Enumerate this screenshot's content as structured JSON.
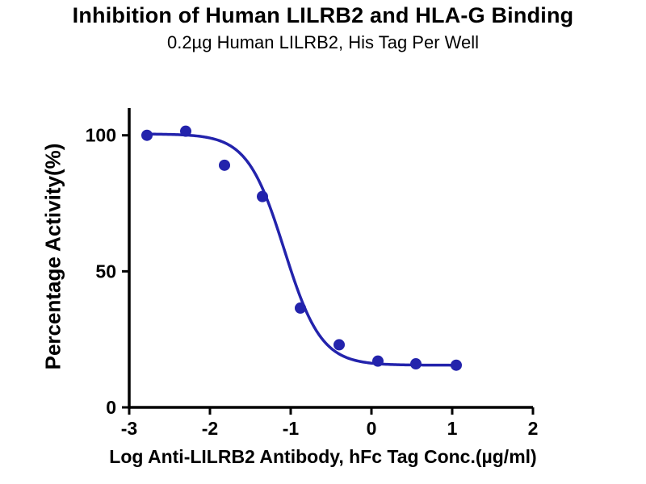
{
  "header": {
    "title": "Inhibition of Human LILRB2 and HLA-G Binding",
    "subtitle": "0.2µg Human LILRB2, His Tag Per Well"
  },
  "chart_data": {
    "type": "scatter",
    "title": "Inhibition of Human LILRB2 and HLA-G Binding",
    "subtitle": "0.2µg Human LILRB2, His Tag Per Well",
    "xlabel": "Log Anti-LILRB2 Antibody, hFc Tag Conc.(µg/ml)",
    "ylabel": "Percentage Activity(%)",
    "x": [
      -2.78,
      -2.3,
      -1.82,
      -1.35,
      -0.88,
      -0.4,
      0.08,
      0.55,
      1.05
    ],
    "y": [
      100,
      101.5,
      89,
      77.5,
      36.5,
      23,
      17,
      16,
      15.5
    ],
    "xlim": [
      -3,
      2
    ],
    "ylim": [
      0,
      110
    ],
    "x_ticks": [
      "-3",
      "-2",
      "-1",
      "0",
      "1",
      "2"
    ],
    "x_tick_values": [
      -3,
      -2,
      -1,
      0,
      1,
      2
    ],
    "y_ticks": [
      "0",
      "50",
      "100"
    ],
    "y_tick_values": [
      0,
      50,
      100
    ],
    "curve_fit": {
      "model": "4PL-sigmoid",
      "top": 100.5,
      "bottom": 15.5,
      "logIC50": -1.08,
      "hillslope": 1.9
    },
    "grid": false,
    "legend": false,
    "colors": {
      "series": "#2323ac",
      "axis": "#000000",
      "background": "#ffffff"
    }
  }
}
